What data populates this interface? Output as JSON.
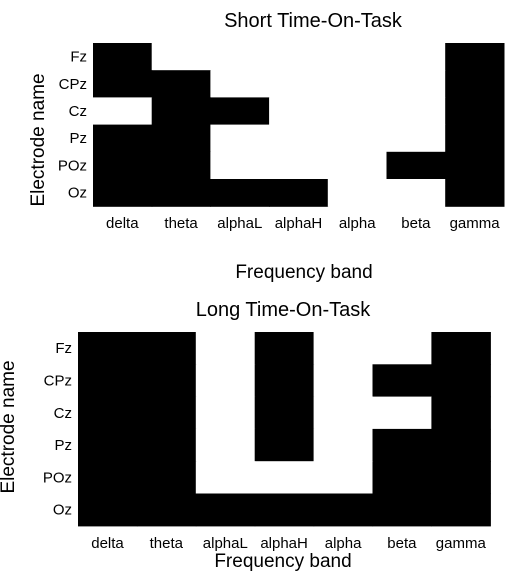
{
  "chart_data": [
    {
      "type": "heatmap",
      "title": "Short Time-On-Task",
      "xlabel": "Frequency band",
      "ylabel": "Electrode name",
      "x_categories": [
        "delta",
        "theta",
        "alphaL",
        "alphaH",
        "alpha",
        "beta",
        "gamma"
      ],
      "y_categories": [
        "Fz",
        "CPz",
        "Cz",
        "Pz",
        "POz",
        "Oz"
      ],
      "colormap": {
        "0": "#ffffff",
        "1": "#000000"
      },
      "values": [
        [
          1,
          0,
          0,
          0,
          0,
          0,
          1
        ],
        [
          1,
          1,
          0,
          0,
          0,
          0,
          1
        ],
        [
          0,
          1,
          1,
          0,
          0,
          0,
          1
        ],
        [
          1,
          1,
          0,
          0,
          0,
          0,
          1
        ],
        [
          1,
          1,
          0,
          0,
          0,
          1,
          1
        ],
        [
          1,
          1,
          1,
          1,
          0,
          0,
          1
        ]
      ]
    },
    {
      "type": "heatmap",
      "title": "Long Time-On-Task",
      "xlabel": "Frequency band",
      "ylabel": "Electrode name",
      "x_categories": [
        "delta",
        "theta",
        "alphaL",
        "alphaH",
        "alpha",
        "beta",
        "gamma"
      ],
      "y_categories": [
        "Fz",
        "CPz",
        "Cz",
        "Pz",
        "POz",
        "Oz"
      ],
      "colormap": {
        "0": "#ffffff",
        "1": "#000000"
      },
      "values": [
        [
          1,
          1,
          0,
          1,
          0,
          0,
          1
        ],
        [
          1,
          1,
          0,
          1,
          0,
          1,
          1
        ],
        [
          1,
          1,
          0,
          1,
          0,
          0,
          1
        ],
        [
          1,
          1,
          0,
          1,
          0,
          1,
          1
        ],
        [
          1,
          1,
          0,
          0,
          0,
          1,
          1
        ],
        [
          1,
          1,
          1,
          1,
          1,
          1,
          1
        ]
      ]
    }
  ]
}
